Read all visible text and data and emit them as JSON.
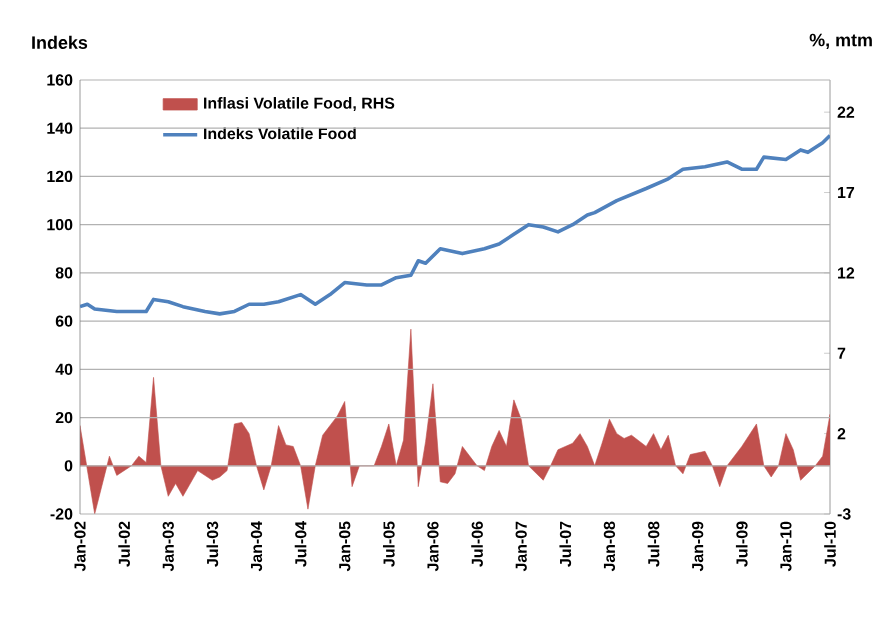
{
  "chart_data": {
    "type": "line",
    "ylabel": "Indeks",
    "y2label": "%, mtm",
    "xlim": [
      "2002-01",
      "2010-07"
    ],
    "xticks": [
      {
        "value": "2002-01",
        "label": "Jan-02"
      },
      {
        "value": "2002-07",
        "label": "Jul-02"
      },
      {
        "value": "2003-01",
        "label": "Jan-03"
      },
      {
        "value": "2003-07",
        "label": "Jul-03"
      },
      {
        "value": "2004-01",
        "label": "Jan-04"
      },
      {
        "value": "2004-07",
        "label": "Jul-04"
      },
      {
        "value": "2005-01",
        "label": "Jan-05"
      },
      {
        "value": "2005-07",
        "label": "Jul-05"
      },
      {
        "value": "2006-01",
        "label": "Jan-06"
      },
      {
        "value": "2006-07",
        "label": "Jul-06"
      },
      {
        "value": "2007-01",
        "label": "Jan-07"
      },
      {
        "value": "2007-07",
        "label": "Jul-07"
      },
      {
        "value": "2008-01",
        "label": "Jan-08"
      },
      {
        "value": "2008-07",
        "label": "Jul-08"
      },
      {
        "value": "2009-01",
        "label": "Jan-09"
      },
      {
        "value": "2009-07",
        "label": "Jul-09"
      },
      {
        "value": "2010-01",
        "label": "Jan-10"
      },
      {
        "value": "2010-07",
        "label": "Jul-10"
      }
    ],
    "ylim": [
      -20,
      160
    ],
    "yticks": [
      -20,
      0,
      20,
      40,
      60,
      80,
      100,
      120,
      140,
      160
    ],
    "y2lim": [
      -3,
      24
    ],
    "y2ticks": [
      -3,
      2,
      7,
      12,
      17,
      22
    ],
    "grid": "y",
    "legend": "top left",
    "series": [
      {
        "name": "Inflasi Volatile Food, RHS",
        "type": "area",
        "axis": "y2",
        "color": "#c0504d",
        "x": [
          "2002-01",
          "2002-03",
          "2002-05",
          "2002-06",
          "2002-08",
          "2002-09",
          "2002-10",
          "2002-11",
          "2002-12",
          "2003-01",
          "2003-02",
          "2003-03",
          "2003-05",
          "2003-07",
          "2003-08",
          "2003-09",
          "2003-10",
          "2003-11",
          "2003-12",
          "2004-01",
          "2004-02",
          "2004-03",
          "2004-04",
          "2004-05",
          "2004-06",
          "2004-07",
          "2004-08",
          "2004-09",
          "2004-10",
          "2004-12",
          "2005-01",
          "2005-02",
          "2005-03",
          "2005-05",
          "2005-06",
          "2005-07",
          "2005-08",
          "2005-09",
          "2005-10",
          "2005-11",
          "2005-12",
          "2006-01",
          "2006-02",
          "2006-03",
          "2006-04",
          "2006-05",
          "2006-07",
          "2006-08",
          "2006-09",
          "2006-10",
          "2006-11",
          "2006-12",
          "2007-01",
          "2007-02",
          "2007-04",
          "2007-05",
          "2007-06",
          "2007-08",
          "2007-09",
          "2007-10",
          "2007-11",
          "2007-12",
          "2008-01",
          "2008-02",
          "2008-03",
          "2008-04",
          "2008-06",
          "2008-07",
          "2008-08",
          "2008-09",
          "2008-10",
          "2008-11",
          "2008-12",
          "2009-02",
          "2009-03",
          "2009-04",
          "2009-05",
          "2009-07",
          "2009-09",
          "2009-10",
          "2009-11",
          "2009-12",
          "2010-01",
          "2010-02",
          "2010-03",
          "2010-05",
          "2010-06",
          "2010-07"
        ],
        "values": [
          2.5,
          -3.0,
          0.6,
          -0.6,
          0.0,
          0.6,
          0.2,
          5.5,
          0.0,
          -1.9,
          -1.1,
          -1.9,
          -0.3,
          -0.9,
          -0.7,
          -0.3,
          2.6,
          2.7,
          2.0,
          0.0,
          -1.5,
          0.0,
          2.5,
          1.3,
          1.2,
          0.0,
          -2.7,
          0.0,
          1.9,
          3.1,
          4.0,
          -1.3,
          0.0,
          0.0,
          1.2,
          2.6,
          0.0,
          1.6,
          8.5,
          -1.3,
          1.5,
          5.1,
          -1.0,
          -1.1,
          -0.5,
          1.2,
          0.0,
          -0.3,
          1.2,
          2.2,
          1.2,
          4.1,
          2.9,
          0.0,
          -0.9,
          0.0,
          1.0,
          1.4,
          2.0,
          1.2,
          0.0,
          1.4,
          2.9,
          2.0,
          1.7,
          1.9,
          1.2,
          2.0,
          1.0,
          1.9,
          0.0,
          -0.5,
          0.7,
          0.9,
          0.0,
          -1.3,
          0.0,
          1.2,
          2.6,
          0.0,
          -0.7,
          0.0,
          2.0,
          1.0,
          -0.9,
          0.0,
          0.6,
          3.2
        ]
      },
      {
        "name": "Indeks Volatile Food",
        "color": "#4f81bd",
        "x": [
          "2002-01",
          "2002-02",
          "2002-03",
          "2002-06",
          "2002-10",
          "2002-11",
          "2003-01",
          "2003-03",
          "2003-06",
          "2003-08",
          "2003-10",
          "2003-12",
          "2004-02",
          "2004-04",
          "2004-07",
          "2004-09",
          "2004-11",
          "2005-01",
          "2005-04",
          "2005-06",
          "2005-08",
          "2005-10",
          "2005-11",
          "2005-12",
          "2006-02",
          "2006-05",
          "2006-08",
          "2006-10",
          "2006-12",
          "2007-02",
          "2007-04",
          "2007-06",
          "2007-08",
          "2007-10",
          "2007-11",
          "2008-02",
          "2008-06",
          "2008-09",
          "2008-11",
          "2009-02",
          "2009-05",
          "2009-07",
          "2009-09",
          "2009-10",
          "2010-01",
          "2010-03",
          "2010-04",
          "2010-06",
          "2010-07"
        ],
        "values": [
          66,
          67,
          65,
          64,
          64,
          69,
          68,
          66,
          64,
          63,
          64,
          67,
          67,
          68,
          71,
          67,
          71,
          76,
          75,
          75,
          78,
          79,
          85,
          84,
          90,
          88,
          90,
          92,
          96,
          100,
          99,
          97,
          100,
          104,
          105,
          110,
          115,
          119,
          123,
          124,
          126,
          123,
          123,
          128,
          127,
          131,
          130,
          134,
          137
        ]
      }
    ]
  }
}
